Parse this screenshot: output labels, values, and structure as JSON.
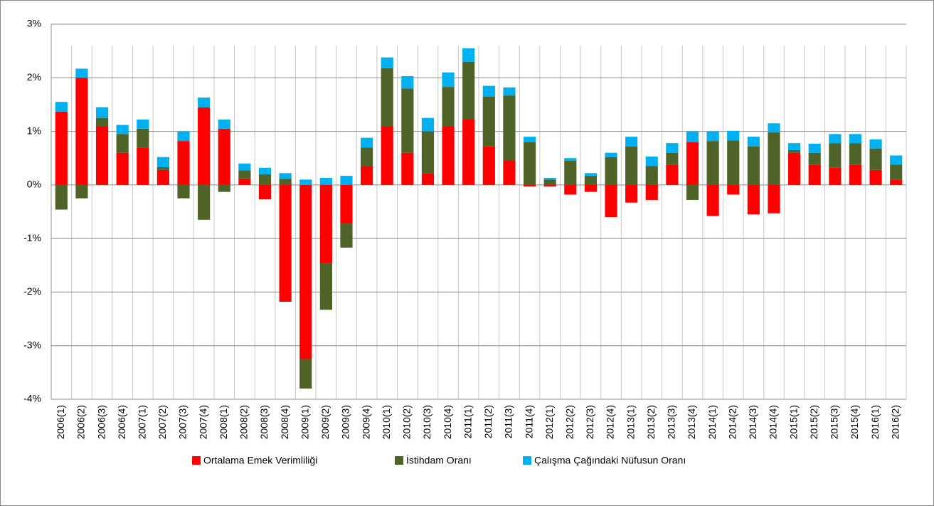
{
  "chart_data": {
    "type": "bar",
    "stacked": true,
    "categories": [
      "2006(1)",
      "2006(2)",
      "2006(3)",
      "2006(4)",
      "2007(1)",
      "2007(2)",
      "2007(3)",
      "2007(4)",
      "2008(1)",
      "2008(2)",
      "2008(3)",
      "2008(4)",
      "2009(1)",
      "2009(2)",
      "2009(3)",
      "2009(4)",
      "2010(1)",
      "2010(2)",
      "2010(3)",
      "2010(4)",
      "2011(1)",
      "2011(2)",
      "2011(3)",
      "2011(4)",
      "2012(1)",
      "2012(2)",
      "2012(3)",
      "2012(4)",
      "2013(1)",
      "2013(2)",
      "2013(3)",
      "2013(4)",
      "2014(1)",
      "2014(2)",
      "2014(3)",
      "2014(4)",
      "2015(1)",
      "2015(2)",
      "2015(3)",
      "2015(4)",
      "2016(1)",
      "2016(2)"
    ],
    "series": [
      {
        "name": "Ortalama Emek Verimliliği",
        "color": "#ff0000",
        "values": [
          1.37,
          2.0,
          1.1,
          0.6,
          0.7,
          0.28,
          0.82,
          1.45,
          1.05,
          0.12,
          -0.27,
          -2.18,
          -3.25,
          -1.45,
          -0.72,
          0.35,
          1.1,
          0.6,
          0.22,
          1.1,
          1.22,
          0.72,
          0.45,
          -0.03,
          -0.03,
          -0.18,
          -0.13,
          -0.6,
          -0.33,
          -0.28,
          0.38,
          0.8,
          -0.58,
          -0.18,
          -0.55,
          -0.53,
          0.6,
          0.38,
          0.32,
          0.38,
          0.28,
          0.1
        ]
      },
      {
        "name": "İstihdam Oranı",
        "color": "#4f6228",
        "values": [
          -0.46,
          -0.25,
          0.15,
          0.35,
          0.35,
          0.05,
          -0.25,
          -0.65,
          -0.13,
          0.15,
          0.2,
          0.12,
          -0.55,
          -0.88,
          -0.45,
          0.35,
          1.08,
          1.2,
          0.78,
          0.73,
          1.08,
          0.93,
          1.22,
          0.8,
          0.1,
          0.45,
          0.17,
          0.52,
          0.72,
          0.35,
          0.22,
          -0.28,
          0.82,
          0.83,
          0.72,
          0.98,
          0.05,
          0.22,
          0.46,
          0.4,
          0.4,
          0.28
        ]
      },
      {
        "name": "Çalışma Çağındaki Nüfusun Oranı",
        "color": "#00b0f0",
        "values": [
          0.18,
          0.17,
          0.2,
          0.17,
          0.17,
          0.19,
          0.18,
          0.18,
          0.17,
          0.13,
          0.12,
          0.1,
          0.1,
          0.13,
          0.17,
          0.18,
          0.2,
          0.23,
          0.25,
          0.27,
          0.25,
          0.2,
          0.15,
          0.1,
          0.03,
          0.05,
          0.05,
          0.08,
          0.18,
          0.18,
          0.18,
          0.2,
          0.18,
          0.18,
          0.18,
          0.17,
          0.13,
          0.17,
          0.17,
          0.17,
          0.17,
          0.17
        ]
      }
    ],
    "ylim": [
      -4,
      3
    ],
    "yticks": [
      {
        "value": -4,
        "label": "-4%"
      },
      {
        "value": -3,
        "label": "-3%"
      },
      {
        "value": -2,
        "label": "-2%"
      },
      {
        "value": -1,
        "label": "-1%"
      },
      {
        "value": 0,
        "label": "0%"
      },
      {
        "value": 1,
        "label": "1%"
      },
      {
        "value": 2,
        "label": "2%"
      },
      {
        "value": 3,
        "label": "3%"
      }
    ],
    "grid": true,
    "legend": "bottom"
  }
}
